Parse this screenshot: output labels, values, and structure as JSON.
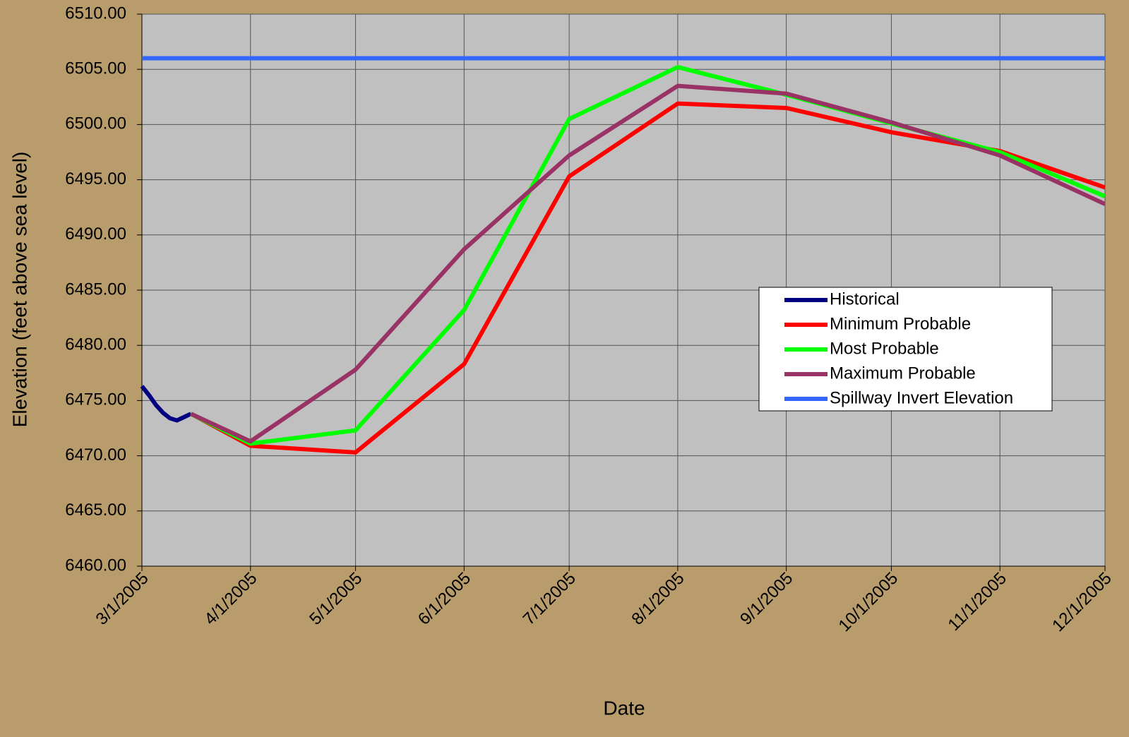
{
  "chart_data": {
    "type": "line",
    "xlabel": "Date",
    "ylabel": "Elevation (feet above sea level)",
    "xlim": [
      "3/1/2005",
      "12/1/2005"
    ],
    "xticks": [
      "3/1/2005",
      "4/1/2005",
      "5/1/2005",
      "6/1/2005",
      "7/1/2005",
      "8/1/2005",
      "9/1/2005",
      "10/1/2005",
      "11/1/2005",
      "12/1/2005"
    ],
    "ylim": [
      6460,
      6510
    ],
    "yticks": [
      {
        "value": 6460,
        "label": "6460.00"
      },
      {
        "value": 6465,
        "label": "6465.00"
      },
      {
        "value": 6470,
        "label": "6470.00"
      },
      {
        "value": 6475,
        "label": "6475.00"
      },
      {
        "value": 6480,
        "label": "6480.00"
      },
      {
        "value": 6485,
        "label": "6485.00"
      },
      {
        "value": 6490,
        "label": "6490.00"
      },
      {
        "value": 6495,
        "label": "6495.00"
      },
      {
        "value": 6500,
        "label": "6500.00"
      },
      {
        "value": 6505,
        "label": "6505.00"
      },
      {
        "value": 6510,
        "label": "6510.00"
      }
    ],
    "grid": true,
    "legend": "right",
    "series": [
      {
        "name": "Historical",
        "color": "#000080",
        "x": [
          "3/1/2005",
          "3/3/2005",
          "3/5/2005",
          "3/7/2005",
          "3/9/2005",
          "3/11/2005",
          "3/13/2005",
          "3/15/2005"
        ],
        "values": [
          6476.3,
          6475.5,
          6474.6,
          6473.9,
          6473.4,
          6473.2,
          6473.5,
          6473.8
        ]
      },
      {
        "name": "Minimum Probable",
        "color": "#ff0000",
        "x": [
          "3/15/2005",
          "4/1/2005",
          "5/1/2005",
          "6/1/2005",
          "7/1/2005",
          "8/1/2005",
          "9/1/2005",
          "10/1/2005",
          "11/1/2005",
          "12/1/2005"
        ],
        "values": [
          6473.8,
          6470.9,
          6470.3,
          6478.3,
          6495.3,
          6501.9,
          6501.5,
          6499.3,
          6497.6,
          6494.3
        ]
      },
      {
        "name": "Most Probable",
        "color": "#00ff00",
        "x": [
          "3/15/2005",
          "4/1/2005",
          "5/1/2005",
          "6/1/2005",
          "7/1/2005",
          "8/1/2005",
          "9/1/2005",
          "10/1/2005",
          "11/1/2005",
          "12/1/2005"
        ],
        "values": [
          6473.8,
          6471.1,
          6472.3,
          6483.2,
          6500.5,
          6505.2,
          6502.7,
          6500.1,
          6497.5,
          6493.5
        ]
      },
      {
        "name": "Maximum Probable",
        "color": "#993366",
        "x": [
          "3/15/2005",
          "4/1/2005",
          "5/1/2005",
          "6/1/2005",
          "7/1/2005",
          "8/1/2005",
          "9/1/2005",
          "10/1/2005",
          "11/1/2005",
          "12/1/2005"
        ],
        "values": [
          6473.8,
          6471.3,
          6477.8,
          6488.7,
          6497.2,
          6503.5,
          6502.8,
          6500.2,
          6497.2,
          6492.8
        ]
      },
      {
        "name": "Spillway Invert Elevation",
        "color": "#3366ff",
        "x": [
          "3/1/2005",
          "12/1/2005"
        ],
        "values": [
          6506,
          6506
        ]
      }
    ]
  }
}
